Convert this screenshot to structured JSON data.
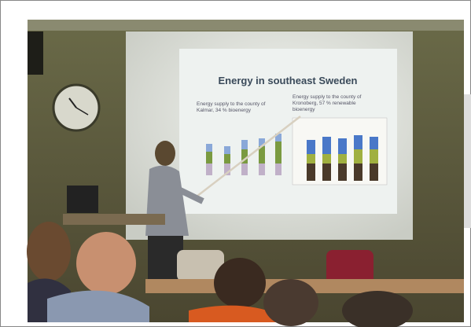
{
  "slide": {
    "title": "Energy in southeast Sweden",
    "left_caption": [
      "Energy supply to the county of",
      "Kalmar, 34 % bioenergy"
    ],
    "right_caption": [
      "Energy supply to the county of",
      "Kronoberg, 57 % renewable",
      "bioenergy"
    ]
  }
}
